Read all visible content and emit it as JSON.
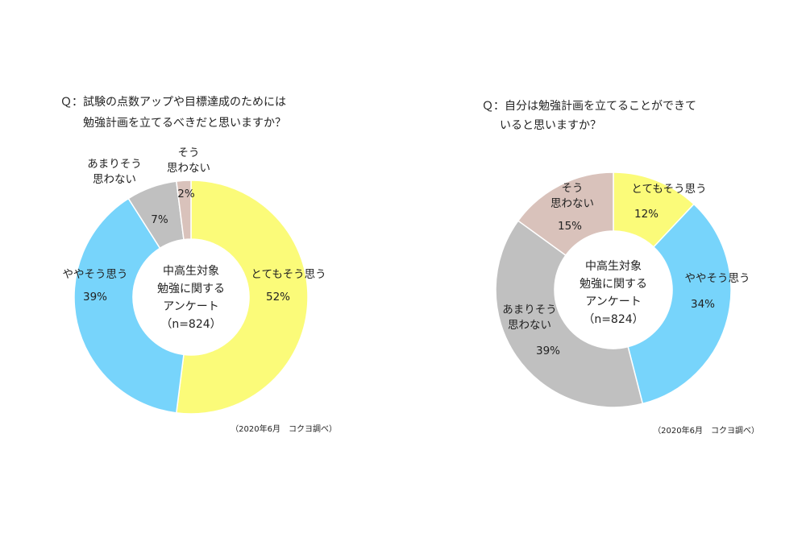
{
  "chart_data": [
    {
      "type": "pie",
      "question_lines": [
        "Ｑ：試験の点数アップや目標達成のためには",
        "勉強計画を立てるべきだと思いますか？"
      ],
      "center_lines": [
        "中高生対象",
        "勉強に関する",
        "アンケート",
        "（n=824）"
      ],
      "source": "（2020年6月　コクヨ調べ）",
      "slices": [
        {
          "label_lines": [
            "とてもそう思う"
          ],
          "value": 52,
          "value_label": "52%",
          "color": "#fbfb79"
        },
        {
          "label_lines": [
            "ややそう思う"
          ],
          "value": 39,
          "value_label": "39%",
          "color": "#77d4fb"
        },
        {
          "label_lines": [
            "あまりそう",
            "思わない"
          ],
          "value": 7,
          "value_label": "7%",
          "color": "#c0c0c0"
        },
        {
          "label_lines": [
            "そう",
            "思わない"
          ],
          "value": 2,
          "value_label": "2%",
          "color": "#d9c2bb"
        }
      ]
    },
    {
      "type": "pie",
      "question_lines": [
        "Ｑ：自分は勉強計画を立てることができて",
        "いると思いますか？"
      ],
      "center_lines": [
        "中高生対象",
        "勉強に関する",
        "アンケート",
        "（n=824）"
      ],
      "source": "（2020年6月　コクヨ調べ）",
      "slices": [
        {
          "label_lines": [
            "とてもそう思う"
          ],
          "value": 12,
          "value_label": "12%",
          "color": "#fbfb79"
        },
        {
          "label_lines": [
            "ややそう思う"
          ],
          "value": 34,
          "value_label": "34%",
          "color": "#77d4fb"
        },
        {
          "label_lines": [
            "あまりそう",
            "思わない"
          ],
          "value": 39,
          "value_label": "39%",
          "color": "#c0c0c0"
        },
        {
          "label_lines": [
            "そう",
            "思わない"
          ],
          "value": 15,
          "value_label": "15%",
          "color": "#d9c2bb"
        }
      ]
    }
  ]
}
